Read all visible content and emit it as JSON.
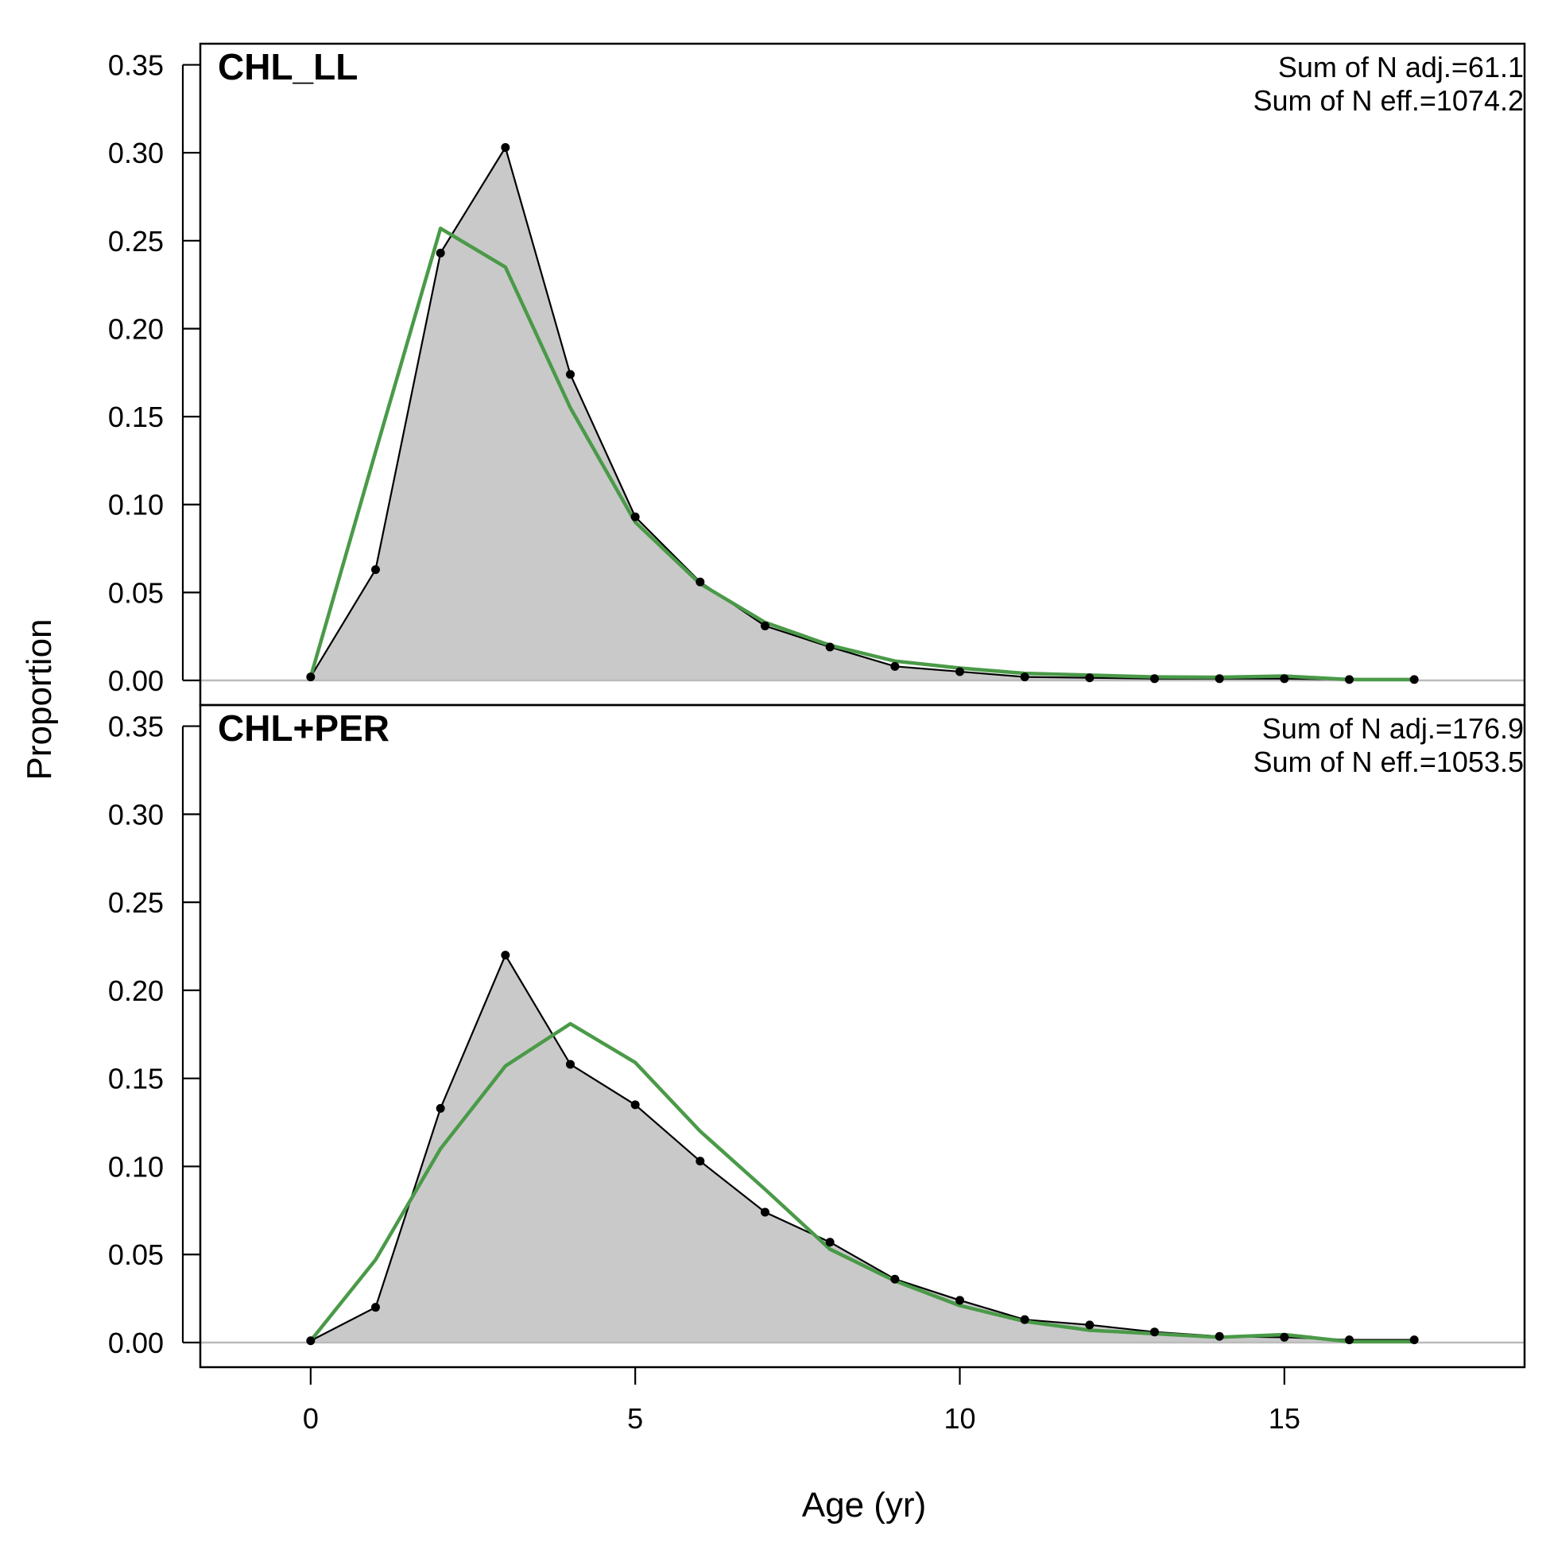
{
  "chart_data": {
    "type": "area",
    "xlabel": "Age (yr)",
    "ylabel": "Proportion",
    "xlim": [
      -1.7,
      18.7
    ],
    "ylim": [
      -0.014,
      0.362
    ],
    "x_ticks": [
      0,
      5,
      10,
      15
    ],
    "x_tick_labels": [
      "0",
      "5",
      "10",
      "15"
    ],
    "y_ticks": [
      0,
      0.05,
      0.1,
      0.15,
      0.2,
      0.25,
      0.3,
      0.35
    ],
    "y_tick_labels": [
      "0.00",
      "0.05",
      "0.10",
      "0.15",
      "0.20",
      "0.25",
      "0.30",
      "0.35"
    ],
    "observed_fill_color": "#c9c9c9",
    "observed_line_color": "#000000",
    "expected_line_color": "#4a9a48",
    "zero_line_color": "#bbbbbb",
    "panels": [
      {
        "label": "CHL_LL",
        "stats": [
          "Sum of N adj.=61.1",
          "Sum of N eff.=1074.2"
        ],
        "x": [
          0,
          1,
          2,
          3,
          4,
          5,
          6,
          7,
          8,
          9,
          10,
          11,
          12,
          13,
          14,
          15,
          16,
          17
        ],
        "observed": [
          0.002,
          0.063,
          0.243,
          0.303,
          0.174,
          0.093,
          0.056,
          0.031,
          0.019,
          0.008,
          0.005,
          0.002,
          0.0015,
          0.001,
          0.001,
          0.001,
          0.0005,
          0.0005
        ],
        "expected": [
          0.002,
          0.13,
          0.257,
          0.235,
          0.155,
          0.09,
          0.055,
          0.033,
          0.02,
          0.011,
          0.007,
          0.004,
          0.003,
          0.002,
          0.0018,
          0.0025,
          0.0005,
          0.0005
        ]
      },
      {
        "label": "CHL+PER",
        "stats": [
          "Sum of N adj.=176.9",
          "Sum of N eff.=1053.5"
        ],
        "x": [
          0,
          1,
          2,
          3,
          4,
          5,
          6,
          7,
          8,
          9,
          10,
          11,
          12,
          13,
          14,
          15,
          16,
          17
        ],
        "observed": [
          0.001,
          0.02,
          0.133,
          0.22,
          0.158,
          0.135,
          0.103,
          0.074,
          0.057,
          0.036,
          0.024,
          0.013,
          0.01,
          0.006,
          0.0035,
          0.003,
          0.0015,
          0.0015
        ],
        "expected": [
          0.001,
          0.047,
          0.11,
          0.157,
          0.181,
          0.159,
          0.12,
          0.087,
          0.053,
          0.035,
          0.021,
          0.012,
          0.007,
          0.005,
          0.003,
          0.0045,
          0.0005,
          0.0005
        ]
      }
    ]
  }
}
